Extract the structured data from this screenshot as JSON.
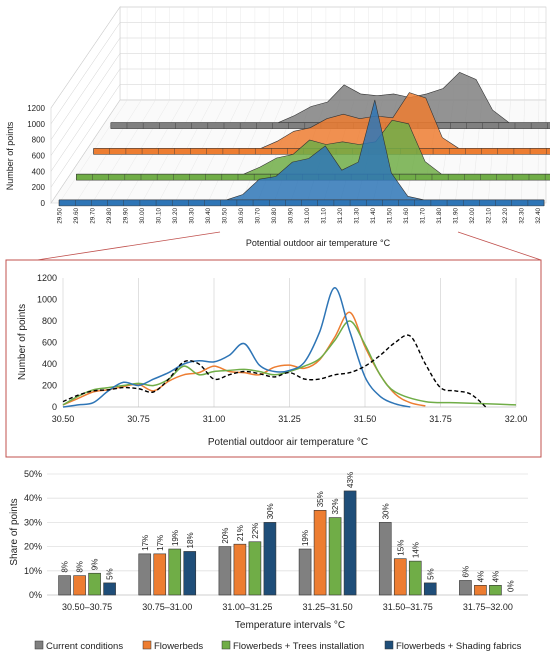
{
  "chart_data": [
    {
      "type": "area",
      "panel": "3d-ridgeline",
      "xlabel": "Potential outdoor air temperature °C",
      "ylabel": "Number of points",
      "y_ticks": [
        0,
        200,
        400,
        600,
        800,
        1000,
        1200
      ],
      "x_ticks": [
        "29.50",
        "29.60",
        "29.70",
        "29.80",
        "29.90",
        "30.00",
        "30.10",
        "30.20",
        "30.30",
        "30.40",
        "30.50",
        "30.60",
        "30.70",
        "30.80",
        "30.90",
        "31.00",
        "31.10",
        "31.20",
        "31.30",
        "31.40",
        "31.50",
        "31.60",
        "31.70",
        "31.80",
        "31.90",
        "32.00",
        "32.10",
        "32.20",
        "32.30",
        "32.40"
      ],
      "ylim": [
        0,
        1200
      ],
      "series": [
        {
          "color": "#2e75b6",
          "x": [
            30.5,
            30.6,
            30.65,
            30.7,
            30.75,
            30.8,
            30.85,
            30.9,
            30.95,
            31.0,
            31.05,
            31.1,
            31.15,
            31.2,
            31.25,
            31.3,
            31.35,
            31.4,
            31.45,
            31.5,
            31.55,
            31.6,
            31.7
          ],
          "values": [
            0,
            60,
            180,
            230,
            200,
            260,
            380,
            420,
            430,
            460,
            520,
            600,
            400,
            330,
            340,
            420,
            700,
            1110,
            700,
            300,
            120,
            40,
            0
          ]
        },
        {
          "color": "#70ad47",
          "x": [
            30.5,
            30.6,
            30.7,
            30.8,
            30.9,
            31.0,
            31.1,
            31.15,
            31.2,
            31.3,
            31.4,
            31.45,
            31.5,
            31.55,
            31.6,
            31.7
          ],
          "values": [
            0,
            80,
            180,
            220,
            380,
            330,
            360,
            330,
            330,
            360,
            600,
            800,
            560,
            300,
            140,
            0
          ]
        },
        {
          "color": "#ed7d31",
          "x": [
            30.5,
            30.6,
            30.7,
            30.8,
            30.9,
            31.0,
            31.1,
            31.2,
            31.3,
            31.35,
            31.4,
            31.45,
            31.5,
            31.55,
            31.6,
            31.7
          ],
          "values": [
            0,
            80,
            190,
            230,
            330,
            380,
            330,
            360,
            340,
            400,
            620,
            880,
            560,
            300,
            120,
            0
          ]
        },
        {
          "color": "#808080",
          "x": [
            30.5,
            30.6,
            30.7,
            30.8,
            30.9,
            31.0,
            31.1,
            31.2,
            31.3,
            31.4,
            31.5,
            31.6,
            31.65,
            31.7,
            31.75,
            31.8,
            31.9
          ],
          "values": [
            0,
            80,
            180,
            230,
            420,
            320,
            300,
            320,
            280,
            320,
            380,
            560,
            660,
            480,
            200,
            140,
            0
          ]
        }
      ]
    },
    {
      "type": "line",
      "panel": "detail",
      "xlabel": "Potential outdoor air temperature °C",
      "ylabel": "Number of points",
      "xlim": [
        30.5,
        32.0
      ],
      "ylim": [
        0,
        1200
      ],
      "x_ticks": [
        "30.50",
        "30.75",
        "31.00",
        "31.25",
        "31.50",
        "31.75",
        "32.00"
      ],
      "y_ticks": [
        "0",
        "200",
        "400",
        "600",
        "800",
        "1000",
        "1200"
      ],
      "series": [
        {
          "name": "Current conditions",
          "color": "#000000",
          "dashed": true,
          "x": [
            30.5,
            30.55,
            30.6,
            30.65,
            30.7,
            30.75,
            30.8,
            30.85,
            30.9,
            30.95,
            31.0,
            31.05,
            31.1,
            31.15,
            31.2,
            31.25,
            31.3,
            31.35,
            31.4,
            31.45,
            31.5,
            31.55,
            31.6,
            31.65,
            31.7,
            31.75,
            31.8,
            31.85,
            31.9
          ],
          "y": [
            50,
            110,
            150,
            160,
            180,
            170,
            140,
            260,
            420,
            400,
            260,
            300,
            330,
            310,
            280,
            320,
            260,
            260,
            300,
            320,
            380,
            480,
            600,
            660,
            400,
            180,
            150,
            120,
            0
          ]
        },
        {
          "name": "Flowerbeds",
          "color": "#ed7d31",
          "x": [
            30.5,
            30.55,
            30.6,
            30.65,
            30.7,
            30.75,
            30.8,
            30.85,
            30.9,
            30.95,
            31.0,
            31.05,
            31.1,
            31.15,
            31.2,
            31.25,
            31.3,
            31.35,
            31.4,
            31.45,
            31.5,
            31.55,
            31.6,
            31.65,
            31.7
          ],
          "y": [
            20,
            80,
            140,
            160,
            190,
            210,
            150,
            240,
            300,
            320,
            380,
            330,
            320,
            300,
            370,
            390,
            360,
            440,
            650,
            880,
            560,
            300,
            120,
            40,
            10
          ]
        },
        {
          "name": "Flowerbeds + Trees installation",
          "color": "#70ad47",
          "x": [
            30.5,
            30.55,
            30.6,
            30.65,
            30.7,
            30.75,
            30.8,
            30.85,
            30.9,
            30.95,
            31.0,
            31.05,
            31.1,
            31.15,
            31.2,
            31.25,
            31.3,
            31.35,
            31.4,
            31.45,
            31.5,
            31.55,
            31.6,
            31.7,
            31.8,
            31.9,
            32.0
          ],
          "y": [
            20,
            100,
            160,
            180,
            200,
            220,
            200,
            260,
            380,
            300,
            330,
            340,
            350,
            330,
            300,
            330,
            380,
            450,
            620,
            800,
            580,
            300,
            140,
            50,
            40,
            30,
            20
          ]
        },
        {
          "name": "Flowerbeds + Shading fabrics",
          "color": "#2e75b6",
          "x": [
            30.5,
            30.55,
            30.6,
            30.65,
            30.7,
            30.75,
            30.8,
            30.85,
            30.9,
            30.95,
            31.0,
            31.05,
            31.1,
            31.15,
            31.2,
            31.25,
            31.3,
            31.35,
            31.4,
            31.45,
            31.5,
            31.55,
            31.6,
            31.65
          ],
          "y": [
            0,
            20,
            40,
            150,
            230,
            200,
            260,
            320,
            400,
            430,
            420,
            480,
            590,
            390,
            330,
            340,
            420,
            700,
            1110,
            700,
            280,
            100,
            30,
            0
          ]
        }
      ]
    },
    {
      "type": "bar",
      "panel": "share",
      "xlabel": "Temperature intervals °C",
      "ylabel": "Share of points",
      "ylim": [
        0,
        50
      ],
      "y_ticks": [
        "0%",
        "10%",
        "20%",
        "30%",
        "40%",
        "50%"
      ],
      "categories": [
        "30.50–30.75",
        "30.75–31.00",
        "31.00–31.25",
        "31.25–31.50",
        "31.50–31.75",
        "31.75–32.00"
      ],
      "series": [
        {
          "name": "Current conditions",
          "color": "#808080",
          "values": [
            8,
            17,
            20,
            19,
            30,
            6
          ],
          "labels": [
            "8%",
            "17%",
            "20%",
            "19%",
            "30%",
            "6%"
          ]
        },
        {
          "name": "Flowerbeds",
          "color": "#ed7d31",
          "values": [
            8,
            17,
            21,
            35,
            15,
            4
          ],
          "labels": [
            "8%",
            "17%",
            "21%",
            "35%",
            "15%",
            "4%"
          ]
        },
        {
          "name": "Flowerbeds + Trees installation",
          "color": "#70ad47",
          "values": [
            9,
            19,
            22,
            32,
            14,
            4
          ],
          "labels": [
            "9%",
            "19%",
            "22%",
            "32%",
            "14%",
            "4%"
          ]
        },
        {
          "name": "Flowerbeds + Shading fabrics",
          "color": "#1f4e79",
          "values": [
            5,
            18,
            30,
            43,
            5,
            0
          ],
          "labels": [
            "5%",
            "18%",
            "30%",
            "43%",
            "5%",
            "0%"
          ]
        }
      ]
    }
  ]
}
